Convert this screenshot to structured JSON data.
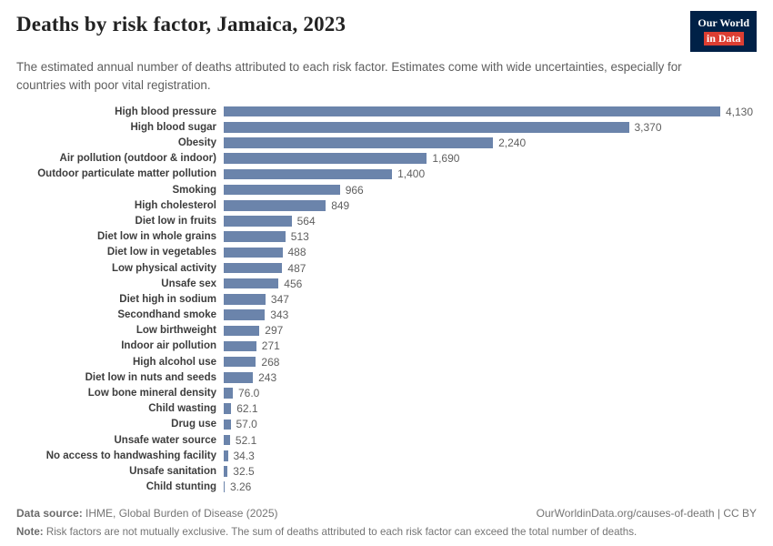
{
  "header": {
    "title": "Deaths by risk factor, Jamaica, 2023",
    "subtitle": "The estimated annual number of deaths attributed to each risk factor. Estimates come with wide uncertainties, especially for countries with poor vital registration.",
    "logo": {
      "line1": "Our World",
      "line2": "in Data"
    }
  },
  "colors": {
    "bar": "#6b84ab",
    "logo_bg": "#002147",
    "logo_accent": "#dc3e32",
    "title_text": "#222222",
    "subtitle_text": "#5e5e5e"
  },
  "chart_data": {
    "type": "bar",
    "orientation": "horizontal",
    "title": "Deaths by risk factor, Jamaica, 2023",
    "xlabel": "",
    "ylabel": "",
    "xlim": [
      0,
      4130
    ],
    "grid": false,
    "legend": "none",
    "categories": [
      "High blood pressure",
      "High blood sugar",
      "Obesity",
      "Air pollution (outdoor & indoor)",
      "Outdoor particulate matter pollution",
      "Smoking",
      "High cholesterol",
      "Diet low in fruits",
      "Diet low in whole grains",
      "Diet low in vegetables",
      "Low physical activity",
      "Unsafe sex",
      "Diet high in sodium",
      "Secondhand smoke",
      "Low birthweight",
      "Indoor air pollution",
      "High alcohol use",
      "Diet low in nuts and seeds",
      "Low bone mineral density",
      "Child wasting",
      "Drug use",
      "Unsafe water source",
      "No access to handwashing facility",
      "Unsafe sanitation",
      "Child stunting"
    ],
    "values": [
      4130,
      3370,
      2240,
      1690,
      1400,
      966,
      849,
      564,
      513,
      488,
      487,
      456,
      347,
      343,
      297,
      271,
      268,
      243,
      76.0,
      62.1,
      57.0,
      52.1,
      34.3,
      32.5,
      3.26
    ],
    "value_labels": [
      "4,130",
      "3,370",
      "2,240",
      "1,690",
      "1,400",
      "966",
      "849",
      "564",
      "513",
      "488",
      "487",
      "456",
      "347",
      "343",
      "297",
      "271",
      "268",
      "243",
      "76.0",
      "62.1",
      "57.0",
      "52.1",
      "34.3",
      "32.5",
      "3.26"
    ]
  },
  "footer": {
    "source_label": "Data source:",
    "source_text": "IHME, Global Burden of Disease (2025)",
    "url": "OurWorldinData.org/causes-of-death | CC BY",
    "note_label": "Note:",
    "note_text": "Risk factors are not mutually exclusive. The sum of deaths attributed to each risk factor can exceed the total number of deaths."
  }
}
